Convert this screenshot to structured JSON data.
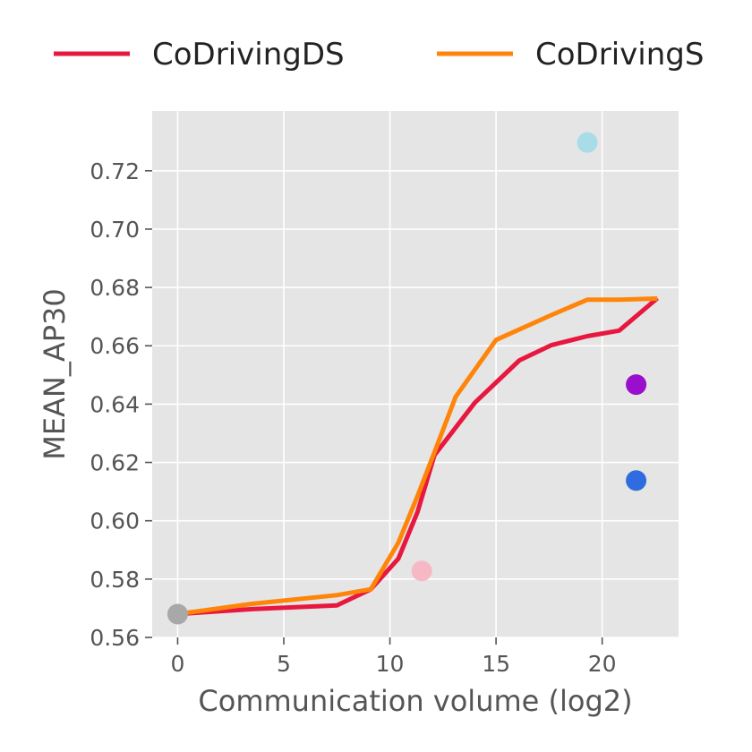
{
  "chart_data": {
    "type": "line",
    "title": "",
    "xlabel": "Communication volume (log2)",
    "ylabel": "MEAN_AP30",
    "xlim": [
      -1.2,
      23.6
    ],
    "ylim": [
      0.56,
      0.7405
    ],
    "xticks": [
      0,
      5,
      10,
      15,
      20
    ],
    "xtick_labels": [
      "0",
      "5",
      "10",
      "15",
      "20"
    ],
    "yticks": [
      0.56,
      0.58,
      0.6,
      0.62,
      0.64,
      0.66,
      0.68,
      0.7,
      0.72
    ],
    "ytick_labels": [
      "0.56",
      "0.58",
      "0.60",
      "0.62",
      "0.64",
      "0.66",
      "0.68",
      "0.70",
      "0.72"
    ],
    "grid": true,
    "legend_position": "top",
    "series": [
      {
        "name": "CoDrivingDS",
        "color": "#e8173f",
        "x": [
          0,
          3.5,
          7.5,
          9.1,
          10.4,
          11.3,
          12.1,
          14.0,
          16.1,
          17.6,
          19.3,
          20.8,
          22.6
        ],
        "y": [
          0.568,
          0.5697,
          0.571,
          0.5765,
          0.587,
          0.603,
          0.6225,
          0.6405,
          0.655,
          0.6602,
          0.6633,
          0.6652,
          0.6763
        ]
      },
      {
        "name": "CoDrivingS",
        "color": "#ff850a",
        "x": [
          0,
          3.5,
          7.5,
          9.1,
          10.4,
          11.3,
          12.1,
          13.1,
          15.0,
          17.6,
          19.3,
          20.8,
          22.6
        ],
        "y": [
          0.568,
          0.5715,
          0.5745,
          0.5765,
          0.5925,
          0.6085,
          0.6235,
          0.6425,
          0.662,
          0.6705,
          0.6758,
          0.6758,
          0.6762
        ]
      }
    ],
    "points": [
      {
        "x": 0,
        "y": 0.568,
        "color": "#a8a8a8"
      },
      {
        "x": 11.5,
        "y": 0.5828,
        "color": "#f7b8c6"
      },
      {
        "x": 19.3,
        "y": 0.7297,
        "color": "#a8dde8"
      },
      {
        "x": 21.6,
        "y": 0.6467,
        "color": "#9a0fce"
      },
      {
        "x": 21.6,
        "y": 0.6138,
        "color": "#2f6ce0"
      }
    ],
    "colors": {
      "plot_background": "#e5e5e5",
      "grid": "#ffffff",
      "tick_mark": "#555555"
    }
  }
}
